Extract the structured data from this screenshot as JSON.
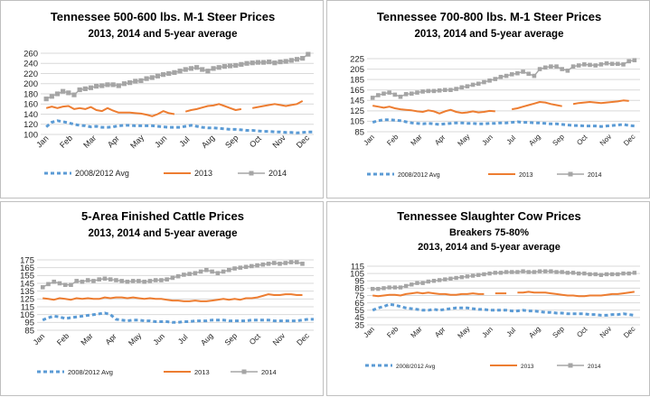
{
  "series_names": [
    "2008/2012 Avg",
    "2013",
    "2014"
  ],
  "series_colors": [
    "#5b9bd5",
    "#ed7d31",
    "#a5a5a5"
  ],
  "chart_data": [
    {
      "type": "line",
      "title": "Tennessee 500-600 lbs. M-1 Steer Prices",
      "subtitle": "2013, 2014 and 5-year average",
      "subtitle2": "",
      "months": [
        "Jan",
        "Feb",
        "Mar",
        "Apr",
        "May",
        "Jun",
        "Jul",
        "Aug",
        "Sep",
        "Oct",
        "Nov",
        "Dec"
      ],
      "ylim": [
        100,
        260
      ],
      "yticks": [
        100,
        120,
        140,
        160,
        180,
        200,
        220,
        240,
        260
      ],
      "legend_placement": "bottom",
      "series": [
        {
          "name": "2008/2012 Avg",
          "values": [
            null,
            115,
            124,
            127,
            125,
            123,
            120,
            118,
            117,
            115,
            116,
            114,
            114,
            115,
            117,
            118,
            118,
            117,
            117,
            117,
            117,
            116,
            115,
            114,
            114,
            114,
            116,
            118,
            116,
            114,
            113,
            113,
            112,
            111,
            110,
            110,
            109,
            108,
            108,
            107,
            106,
            106,
            105,
            105,
            104,
            104,
            103,
            104,
            105,
            105
          ]
        },
        {
          "name": "2013",
          "values": [
            null,
            152,
            155,
            152,
            155,
            156,
            150,
            152,
            150,
            154,
            148,
            146,
            152,
            147,
            143,
            143,
            143,
            142,
            141,
            139,
            136,
            140,
            146,
            142,
            140,
            null,
            145,
            148,
            150,
            153,
            156,
            157,
            160,
            156,
            152,
            148,
            150,
            null,
            152,
            154,
            156,
            158,
            160,
            158,
            156,
            158,
            160,
            166,
            null,
            null
          ]
        },
        {
          "name": "2014",
          "values": [
            null,
            170,
            175,
            180,
            185,
            182,
            178,
            188,
            190,
            192,
            195,
            196,
            198,
            198,
            196,
            200,
            202,
            205,
            206,
            210,
            212,
            215,
            218,
            220,
            222,
            225,
            228,
            230,
            232,
            228,
            225,
            230,
            232,
            234,
            235,
            236,
            238,
            240,
            241,
            242,
            242,
            243,
            241,
            243,
            244,
            246,
            248,
            250,
            258,
            null
          ]
        }
      ]
    },
    {
      "type": "line",
      "title": "Tennessee 700-800 lbs. M-1 Steer Prices",
      "subtitle": "2013, 2014 and 5-year average",
      "subtitle2": "",
      "months": [
        "Jan",
        "Feb",
        "Mar",
        "Apr",
        "May",
        "Jun",
        "Jul",
        "Aug",
        "Sep",
        "Oct",
        "Nov",
        "Dec"
      ],
      "ylim": [
        85,
        225
      ],
      "yticks": [
        85,
        105,
        125,
        145,
        165,
        185,
        205,
        225
      ],
      "legend_placement": "bottom",
      "series": [
        {
          "name": "2008/2012 Avg",
          "values": [
            null,
            103,
            106,
            108,
            108,
            107,
            106,
            104,
            102,
            101,
            100,
            101,
            100,
            99,
            100,
            101,
            102,
            102,
            101,
            101,
            100,
            100,
            101,
            101,
            102,
            102,
            103,
            104,
            103,
            103,
            102,
            102,
            101,
            100,
            100,
            99,
            98,
            97,
            97,
            96,
            96,
            96,
            95,
            96,
            97,
            98,
            99,
            97,
            96,
            null
          ]
        },
        {
          "name": "2013",
          "values": [
            null,
            135,
            133,
            131,
            133,
            130,
            128,
            127,
            126,
            124,
            123,
            126,
            124,
            120,
            124,
            127,
            123,
            121,
            122,
            124,
            122,
            123,
            125,
            124,
            null,
            null,
            128,
            130,
            133,
            136,
            139,
            142,
            141,
            138,
            136,
            134,
            null,
            138,
            140,
            141,
            142,
            141,
            140,
            141,
            142,
            143,
            145,
            144,
            null,
            null
          ]
        },
        {
          "name": "2014",
          "values": [
            null,
            150,
            155,
            158,
            160,
            156,
            152,
            157,
            158,
            160,
            162,
            163,
            163,
            164,
            165,
            165,
            167,
            170,
            172,
            175,
            177,
            180,
            183,
            186,
            190,
            192,
            195,
            197,
            200,
            196,
            192,
            205,
            208,
            210,
            210,
            205,
            202,
            210,
            212,
            214,
            213,
            212,
            214,
            216,
            215,
            215,
            214,
            220,
            222,
            null
          ]
        }
      ]
    },
    {
      "type": "line",
      "title": "5-Area Finished Cattle Prices",
      "subtitle": "2013, 2014 and 5-year average",
      "subtitle2": "",
      "months": [
        "Jan",
        "Feb",
        "Mar",
        "Apr",
        "May",
        "Jun",
        "Jul",
        "Aug",
        "Sep",
        "Oct",
        "Nov",
        "Dec"
      ],
      "ylim": [
        85,
        175
      ],
      "yticks": [
        85,
        95,
        105,
        115,
        125,
        135,
        145,
        155,
        165,
        175
      ],
      "legend_placement": "bottom",
      "series": [
        {
          "name": "2008/2012 Avg",
          "values": [
            null,
            98,
            101,
            103,
            102,
            100,
            101,
            102,
            103,
            104,
            105,
            106,
            107,
            105,
            99,
            98,
            97,
            98,
            98,
            97,
            97,
            96,
            96,
            96,
            95,
            95,
            96,
            96,
            97,
            97,
            97,
            98,
            98,
            98,
            97,
            97,
            97,
            97,
            98,
            98,
            98,
            98,
            97,
            97,
            97,
            97,
            97,
            98,
            99,
            99
          ]
        },
        {
          "name": "2013",
          "values": [
            null,
            126,
            125,
            124,
            126,
            125,
            124,
            126,
            125,
            126,
            125,
            125,
            127,
            126,
            127,
            127,
            126,
            127,
            126,
            125,
            126,
            125,
            125,
            124,
            123,
            123,
            122,
            122,
            123,
            122,
            122,
            123,
            124,
            125,
            124,
            125,
            124,
            126,
            126,
            127,
            129,
            131,
            130,
            130,
            131,
            131,
            130,
            130,
            null,
            null
          ]
        },
        {
          "name": "2014",
          "values": [
            null,
            140,
            144,
            147,
            145,
            143,
            143,
            148,
            147,
            149,
            148,
            150,
            151,
            150,
            149,
            148,
            147,
            148,
            148,
            147,
            148,
            149,
            149,
            150,
            152,
            154,
            156,
            157,
            158,
            160,
            162,
            160,
            158,
            160,
            162,
            164,
            165,
            166,
            167,
            168,
            169,
            170,
            171,
            170,
            171,
            172,
            172,
            170,
            null,
            null
          ]
        }
      ]
    },
    {
      "type": "line",
      "title": "Tennessee Slaughter Cow Prices",
      "subtitle": "Breakers 75-80%",
      "subtitle2": "2013, 2014 and 5-year average",
      "months": [
        "Jan",
        "Feb",
        "Mar",
        "Apr",
        "May",
        "Jun",
        "Jul",
        "Aug",
        "Sep",
        "Oct",
        "Nov",
        "Dec"
      ],
      "ylim": [
        35,
        115
      ],
      "yticks": [
        35,
        45,
        55,
        65,
        75,
        85,
        95,
        105,
        115
      ],
      "legend_placement": "bottom",
      "series": [
        {
          "name": "2008/2012 Avg",
          "values": [
            null,
            55,
            58,
            60,
            63,
            62,
            60,
            58,
            57,
            56,
            55,
            55,
            56,
            55,
            56,
            57,
            58,
            58,
            58,
            57,
            56,
            56,
            55,
            55,
            55,
            55,
            54,
            54,
            55,
            54,
            54,
            53,
            52,
            52,
            51,
            51,
            50,
            50,
            50,
            50,
            49,
            49,
            48,
            48,
            49,
            49,
            50,
            49,
            48,
            null
          ]
        },
        {
          "name": "2013",
          "values": [
            null,
            75,
            74,
            75,
            76,
            76,
            75,
            77,
            78,
            79,
            78,
            79,
            78,
            77,
            77,
            76,
            76,
            77,
            77,
            78,
            77,
            77,
            null,
            78,
            78,
            78,
            null,
            79,
            79,
            80,
            79,
            79,
            79,
            78,
            77,
            76,
            75,
            75,
            74,
            74,
            75,
            75,
            75,
            76,
            77,
            77,
            78,
            79,
            80,
            null
          ]
        },
        {
          "name": "2014",
          "values": [
            null,
            84,
            84,
            85,
            86,
            86,
            86,
            88,
            90,
            92,
            92,
            94,
            95,
            96,
            97,
            98,
            99,
            100,
            101,
            102,
            103,
            104,
            105,
            106,
            106,
            107,
            107,
            107,
            108,
            107,
            107,
            108,
            108,
            108,
            107,
            107,
            106,
            106,
            105,
            105,
            104,
            104,
            103,
            104,
            104,
            104,
            105,
            105,
            106,
            null
          ]
        }
      ]
    }
  ]
}
